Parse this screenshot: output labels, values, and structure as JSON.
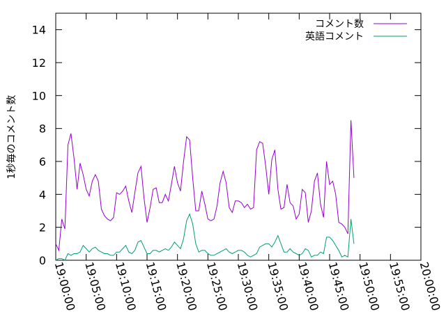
{
  "chart_data": {
    "type": "line",
    "title": "",
    "xlabel": "",
    "ylabel": "1秒毎のコメント数",
    "ylim": [
      0,
      15
    ],
    "yticks": [
      0,
      2,
      4,
      6,
      8,
      10,
      12,
      14
    ],
    "xlim": [
      "19:00:00",
      "20:00:00"
    ],
    "xticks": [
      "19:00:00",
      "19:05:00",
      "19:10:00",
      "19:15:00",
      "19:20:00",
      "19:25:00",
      "19:30:00",
      "19:35:00",
      "19:40:00",
      "19:45:00",
      "19:50:00",
      "19:55:00",
      "20:00:00"
    ],
    "legend_position": "top-right",
    "grid": false,
    "x_step_seconds": 30,
    "x_start": "19:00:00",
    "series": [
      {
        "name": "コメント数",
        "color": "#9400d3",
        "values": [
          1.0,
          0.6,
          2.5,
          1.9,
          7.0,
          7.7,
          6.2,
          4.3,
          5.9,
          5.2,
          4.3,
          3.9,
          4.8,
          5.2,
          4.8,
          3.1,
          2.7,
          2.5,
          2.4,
          2.6,
          4.1,
          4.0,
          4.2,
          4.5,
          3.6,
          2.9,
          4.1,
          5.3,
          5.7,
          3.8,
          2.3,
          3.2,
          4.3,
          4.4,
          3.5,
          3.5,
          4.0,
          3.6,
          4.6,
          5.7,
          4.7,
          4.2,
          6.0,
          7.5,
          7.3,
          5.0,
          3.0,
          3.0,
          4.2,
          3.4,
          2.5,
          2.4,
          2.5,
          3.3,
          4.7,
          5.4,
          4.7,
          3.2,
          2.9,
          3.6,
          3.6,
          3.5,
          3.2,
          3.4,
          3.1,
          3.2,
          6.7,
          7.2,
          7.1,
          5.7,
          4.0,
          6.1,
          6.7,
          4.3,
          3.1,
          3.2,
          4.6,
          3.5,
          3.3,
          2.5,
          2.8,
          4.3,
          4.1,
          2.3,
          3.0,
          4.8,
          5.3,
          3.4,
          2.6,
          6.0,
          4.6,
          4.8,
          4.0,
          2.3,
          2.2,
          2.0,
          1.6,
          8.5,
          5.0
        ]
      },
      {
        "name": "英語コメント",
        "color": "#009e73",
        "values": [
          0.0,
          0.1,
          0.1,
          0.0,
          0.4,
          0.3,
          0.4,
          0.4,
          0.5,
          0.9,
          0.7,
          0.5,
          0.7,
          0.8,
          0.6,
          0.5,
          0.4,
          0.4,
          0.3,
          0.3,
          0.5,
          0.5,
          0.7,
          0.9,
          0.5,
          0.4,
          0.6,
          1.1,
          1.2,
          0.8,
          0.4,
          0.4,
          0.6,
          0.6,
          0.5,
          0.6,
          0.7,
          0.6,
          0.8,
          1.1,
          0.9,
          0.7,
          1.3,
          2.4,
          2.8,
          2.2,
          1.0,
          0.5,
          0.6,
          0.6,
          0.4,
          0.3,
          0.3,
          0.4,
          0.5,
          0.6,
          0.7,
          0.5,
          0.4,
          0.5,
          0.6,
          0.6,
          0.5,
          0.3,
          0.2,
          0.3,
          0.4,
          0.8,
          0.9,
          1.0,
          1.0,
          0.8,
          1.1,
          1.5,
          1.0,
          0.5,
          0.5,
          0.7,
          0.5,
          0.4,
          0.3,
          0.4,
          0.7,
          0.6,
          0.2,
          0.3,
          0.3,
          0.5,
          0.4,
          1.4,
          1.4,
          1.2,
          0.9,
          0.6,
          0.2,
          0.3,
          0.2,
          2.5,
          1.0
        ]
      }
    ]
  }
}
